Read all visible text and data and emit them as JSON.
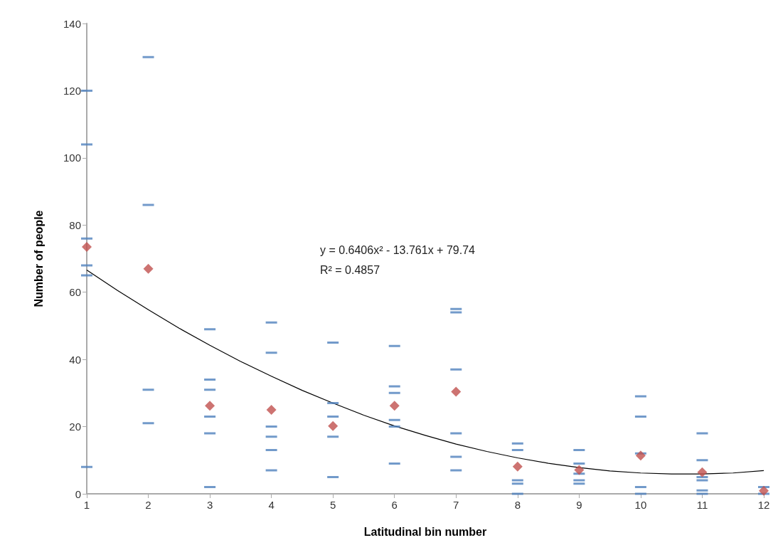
{
  "chart_data": {
    "type": "scatter",
    "xlabel": "Latitudinal bin number",
    "ylabel": "Number of people",
    "xlim": [
      1,
      12
    ],
    "xticks": [
      1,
      2,
      3,
      4,
      5,
      6,
      7,
      8,
      9,
      10,
      11,
      12
    ],
    "ylim": [
      0,
      140
    ],
    "yticks": [
      0,
      20,
      40,
      60,
      80,
      100,
      120,
      140
    ],
    "grid": false,
    "annotations": [
      "y = 0.6406x² - 13.761x + 79.74",
      "R² = 0.4857"
    ],
    "series": [
      {
        "color": "#4f81bd",
        "x": [
          1,
          1,
          1,
          1,
          1,
          1,
          2,
          2,
          2,
          2,
          3,
          3,
          3,
          3,
          3,
          3,
          4,
          4,
          4,
          4,
          4,
          4,
          5,
          5,
          5,
          5,
          5,
          6,
          6,
          6,
          6,
          6,
          6,
          7,
          7,
          7,
          7,
          7,
          7,
          8,
          8,
          8,
          8,
          8,
          9,
          9,
          9,
          9,
          9,
          10,
          10,
          10,
          10,
          10,
          11,
          11,
          11,
          11,
          11,
          11,
          12,
          12
        ],
        "values": [
          120,
          104,
          76,
          68,
          65,
          8,
          130,
          86,
          31,
          21,
          49,
          34,
          31,
          23,
          18,
          2,
          51,
          42,
          20,
          17,
          13,
          7,
          45,
          27,
          23,
          17,
          5,
          44,
          32,
          30,
          22,
          20,
          9,
          55,
          54,
          37,
          18,
          11,
          7,
          15,
          13,
          4,
          3,
          0,
          13,
          9,
          6,
          4,
          3,
          29,
          23,
          12,
          2,
          0,
          18,
          10,
          5,
          4,
          1,
          0,
          2,
          0
        ]
      },
      {
        "color": "#c0504d",
        "marker": "diamond",
        "x": [
          1,
          2,
          3,
          4,
          5,
          6,
          7,
          8,
          9,
          10,
          11,
          12
        ],
        "values": [
          73.5,
          67,
          26.2,
          25,
          20.2,
          26.2,
          30.4,
          8.1,
          7.1,
          11.4,
          6.4,
          0.9
        ]
      },
      {
        "type": "line",
        "color": "#000000",
        "x": [
          1,
          1.5,
          2,
          2.5,
          3,
          3.5,
          4,
          4.5,
          5,
          5.5,
          6,
          6.5,
          7,
          7.5,
          8,
          8.5,
          9,
          9.5,
          10,
          10.5,
          11,
          11.5,
          12
        ],
        "values": [
          66.6,
          60.5,
          54.8,
          49.3,
          44.2,
          39.4,
          35.0,
          30.8,
          27.0,
          23.4,
          20.2,
          17.4,
          14.8,
          12.6,
          10.7,
          9.1,
          7.8,
          6.8,
          6.2,
          5.9,
          5.9,
          6.2,
          6.9
        ]
      }
    ]
  }
}
